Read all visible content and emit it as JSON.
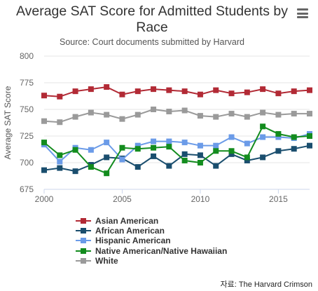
{
  "chart_data": {
    "type": "line",
    "title": "Average SAT Score for Admitted Students by Race",
    "subtitle": "Source: Court documents submitted by Harvard",
    "ylabel": "Average SAT Score",
    "xlabel": "",
    "x": [
      2000,
      2001,
      2002,
      2003,
      2004,
      2005,
      2006,
      2007,
      2008,
      2009,
      2010,
      2011,
      2012,
      2013,
      2014,
      2015,
      2016,
      2017
    ],
    "xticks": [
      "2000",
      "2005",
      "2010",
      "2015"
    ],
    "xticks_values": [
      2000,
      2005,
      2010,
      2015
    ],
    "yticks": [
      "675",
      "700",
      "725",
      "750",
      "775",
      "800"
    ],
    "yticks_values": [
      675,
      700,
      725,
      750,
      775,
      800
    ],
    "ylim": [
      675,
      800
    ],
    "xlim": [
      2000,
      2017
    ],
    "grid": "horizontal",
    "legend_position": "bottom",
    "series": [
      {
        "name": "Asian American",
        "color": "#b22a35",
        "values": [
          763,
          762,
          767,
          769,
          771,
          764,
          767,
          769,
          768,
          767,
          764,
          768,
          765,
          766,
          769,
          765,
          767,
          768
        ]
      },
      {
        "name": "African American",
        "color": "#1a4e6e",
        "values": [
          693,
          695,
          692,
          698,
          705,
          704,
          696,
          706,
          697,
          708,
          707,
          697,
          708,
          702,
          705,
          711,
          713,
          716
        ]
      },
      {
        "name": "Hispanic American",
        "color": "#6b9be8",
        "values": [
          717,
          701,
          714,
          712,
          719,
          703,
          716,
          720,
          720,
          719,
          716,
          716,
          724,
          718,
          724,
          724,
          723,
          727
        ]
      },
      {
        "name": "Native American/Native Hawaiian",
        "color": "#138c1e",
        "values": [
          719,
          707,
          712,
          696,
          690,
          714,
          713,
          714,
          715,
          702,
          700,
          711,
          711,
          705,
          734,
          727,
          724,
          725
        ]
      },
      {
        "name": "White",
        "color": "#9a9a9a",
        "values": [
          739,
          738,
          743,
          747,
          745,
          741,
          745,
          750,
          748,
          749,
          744,
          743,
          746,
          743,
          747,
          745,
          746,
          746
        ]
      }
    ]
  },
  "source_note": "자료: The Harvard Crimson"
}
